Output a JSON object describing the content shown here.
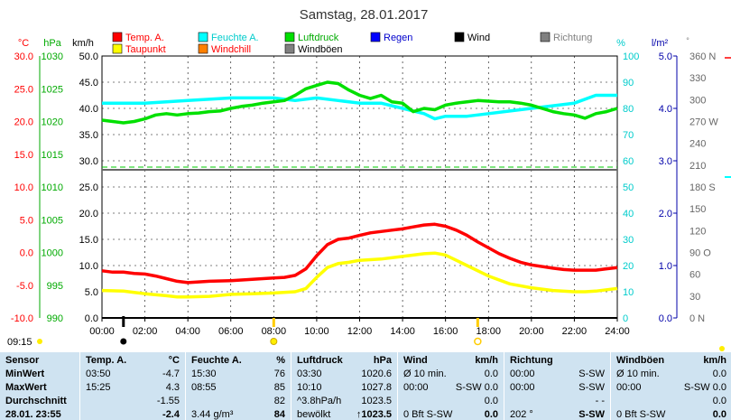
{
  "header": {
    "title": "Samstag, 28.01.2017"
  },
  "legend": [
    {
      "label": "Temp. A.",
      "color": "#ff0000",
      "text_color": "#ff0000"
    },
    {
      "label": "Taupunkt",
      "color": "#ffff00",
      "text_color": "#ff0000"
    },
    {
      "label": "Feuchte A.",
      "color": "#00ffff",
      "text_color": "#00cccc"
    },
    {
      "label": "Windchill",
      "color": "#ff8000",
      "text_color": "#ff0000"
    },
    {
      "label": "Luftdruck",
      "color": "#00e000",
      "text_color": "#00aa00"
    },
    {
      "label": "Windböen",
      "color": "#808080",
      "text_color": "#000000"
    },
    {
      "label": "Regen",
      "color": "#0000ff",
      "text_color": "#0000cc"
    },
    {
      "label": "Wind",
      "color": "#000000",
      "text_color": "#000000"
    },
    {
      "label": "Richtung",
      "color": "#808080",
      "text_color": "#808080"
    }
  ],
  "chart_data": {
    "type": "line",
    "x_ticks": [
      "00:00",
      "02:00",
      "04:00",
      "06:00",
      "08:00",
      "10:00",
      "12:00",
      "14:00",
      "16:00",
      "18:00",
      "20:00",
      "22:00",
      "24:00"
    ],
    "axes": {
      "temp_c": {
        "unit": "°C",
        "color": "#ff0000",
        "ticks": [
          "30.0",
          "25.0",
          "20.0",
          "15.0",
          "10.0",
          "5.0",
          "0.0",
          "-5.0",
          "-10.0"
        ]
      },
      "pressure_hpa": {
        "unit": "hPa",
        "color": "#00aa00",
        "ticks": [
          "1030",
          "1025",
          "1020",
          "1015",
          "1010",
          "1005",
          "1000",
          "995",
          "990"
        ]
      },
      "wind_kmh": {
        "unit": "km/h",
        "color": "#000000",
        "ticks": [
          "50.0",
          "45.0",
          "40.0",
          "35.0",
          "30.0",
          "25.0",
          "20.0",
          "15.0",
          "10.0",
          "5.0",
          "0.0"
        ]
      },
      "humidity_pct": {
        "unit": "%",
        "color": "#00cccc",
        "ticks": [
          "100",
          "90",
          "80",
          "70",
          "60",
          "50",
          "40",
          "30",
          "20",
          "10",
          "0"
        ]
      },
      "rain_lm2": {
        "unit": "l/m²",
        "color": "#0000aa",
        "ticks": [
          "5.0",
          "4.0",
          "3.0",
          "2.0",
          "1.0",
          "0.0"
        ]
      },
      "direction": {
        "unit": "°",
        "color": "#808080",
        "ticks": [
          "360 N",
          "330",
          "300",
          "270 W",
          "240",
          "210",
          "180 S",
          "150",
          "120",
          "90 O",
          "60",
          "30",
          "0 N"
        ]
      }
    },
    "series": [
      {
        "name": "Temp. A.",
        "axis": "temp_c",
        "color": "#ff0000",
        "x": [
          0,
          0.5,
          1,
          1.5,
          2,
          2.5,
          3,
          3.5,
          4,
          4.5,
          5,
          6,
          7,
          8,
          8.5,
          9,
          9.5,
          10,
          10.5,
          11,
          11.5,
          12,
          12.5,
          13,
          13.5,
          14,
          14.5,
          15,
          15.5,
          16,
          16.5,
          17,
          17.5,
          18,
          18.5,
          19,
          19.5,
          20,
          21,
          21.5,
          22,
          22.5,
          23,
          23.5,
          24
        ],
        "y": [
          -2.8,
          -3.0,
          -3.0,
          -3.2,
          -3.3,
          -3.6,
          -4.0,
          -4.4,
          -4.6,
          -4.5,
          -4.4,
          -4.3,
          -4.1,
          -3.9,
          -3.8,
          -3.5,
          -2.5,
          -0.5,
          1.2,
          2.0,
          2.2,
          2.6,
          3.0,
          3.2,
          3.4,
          3.6,
          3.9,
          4.2,
          4.3,
          4.0,
          3.4,
          2.6,
          1.6,
          0.7,
          -0.2,
          -0.9,
          -1.5,
          -1.9,
          -2.4,
          -2.6,
          -2.7,
          -2.7,
          -2.7,
          -2.5,
          -2.3
        ]
      },
      {
        "name": "Taupunkt",
        "axis": "temp_c",
        "color": "#ffff00",
        "x": [
          0,
          1,
          1.5,
          2,
          3,
          3.5,
          4,
          5,
          6,
          7,
          8,
          9,
          9.5,
          10,
          10.5,
          11,
          11.5,
          12,
          13,
          14,
          15,
          15.5,
          16,
          17,
          18,
          19,
          20,
          21,
          22,
          22.5,
          23,
          23.5,
          24
        ],
        "y": [
          -5.8,
          -5.9,
          -6.1,
          -6.3,
          -6.6,
          -6.8,
          -6.8,
          -6.7,
          -6.4,
          -6.3,
          -6.2,
          -6.0,
          -5.5,
          -3.8,
          -2.3,
          -1.7,
          -1.5,
          -1.2,
          -1.0,
          -0.6,
          -0.2,
          -0.1,
          -0.4,
          -2.0,
          -3.6,
          -4.8,
          -5.4,
          -5.8,
          -6.0,
          -6.0,
          -5.9,
          -5.7,
          -5.5
        ]
      },
      {
        "name": "Feuchte A.",
        "axis": "humidity_pct",
        "color": "#00ffff",
        "x": [
          0,
          2,
          4,
          6,
          8,
          9,
          10,
          11,
          12,
          13,
          14,
          15,
          15.5,
          16,
          17,
          18,
          19,
          20,
          21,
          22,
          23,
          24
        ],
        "y": [
          82,
          82,
          83,
          84,
          84,
          83,
          84,
          83,
          82,
          82,
          80,
          78,
          76,
          77,
          77,
          78,
          79,
          80,
          81,
          82,
          85,
          85
        ]
      },
      {
        "name": "Luftdruck",
        "axis": "pressure_hpa",
        "color": "#00e000",
        "x": [
          0,
          0.5,
          1,
          1.5,
          2,
          2.5,
          3,
          3.5,
          4,
          4.5,
          5,
          5.5,
          6,
          6.5,
          7,
          7.5,
          8,
          8.5,
          9,
          9.5,
          10,
          10.5,
          11,
          11.5,
          12,
          12.5,
          13,
          13.5,
          14,
          14.5,
          15,
          15.5,
          16,
          16.5,
          17,
          17.5,
          18,
          18.5,
          19,
          19.5,
          20,
          20.5,
          21,
          21.5,
          22,
          22.5,
          23,
          23.5,
          24
        ],
        "y": [
          1020.2,
          1020.0,
          1019.8,
          1020.0,
          1020.4,
          1021.0,
          1021.2,
          1021.0,
          1021.2,
          1021.3,
          1021.5,
          1021.6,
          1022.0,
          1022.3,
          1022.5,
          1022.8,
          1023.0,
          1023.2,
          1024.0,
          1025.0,
          1025.5,
          1026.0,
          1025.8,
          1024.8,
          1024.0,
          1023.5,
          1024.0,
          1023.0,
          1022.8,
          1021.5,
          1022.0,
          1021.8,
          1022.5,
          1022.8,
          1023.0,
          1023.2,
          1023.1,
          1023.0,
          1023.0,
          1022.8,
          1022.5,
          1022.0,
          1021.5,
          1021.2,
          1021.0,
          1020.5,
          1021.2,
          1021.5,
          1022.0
        ]
      },
      {
        "name": "Wind",
        "axis": "wind_kmh",
        "color": "#000000",
        "x": [
          0,
          24
        ],
        "y": [
          0.0,
          0.0
        ]
      }
    ],
    "markers": {
      "sunrise": "08:00",
      "sunset": "17:30",
      "moon": "01:00"
    },
    "current_time": "09:15"
  },
  "stats": {
    "row_labels": {
      "header": "Sensor",
      "min": "MinWert",
      "max": "MaxWert",
      "avg": "Durchschnitt",
      "current": "28.01. 23:55"
    },
    "columns": [
      {
        "name": "Temp. A.",
        "unit": "°C",
        "min_time": "03:50",
        "min": "-4.7",
        "max_time": "15:25",
        "max": "4.3",
        "avg_label": "",
        "avg": "-1.55",
        "cur_label": "",
        "cur": "-2.4"
      },
      {
        "name": "Feuchte A.",
        "unit": "%",
        "min_time": "15:30",
        "min": "76",
        "max_time": "08:55",
        "max": "85",
        "avg_label": "",
        "avg": "82",
        "cur_label": "3.44 g/m³",
        "cur": "84"
      },
      {
        "name": "Luftdruck",
        "unit": "hPa",
        "min_time": "03:30",
        "min": "1020.6",
        "max_time": "10:10",
        "max": "1027.8",
        "avg_label": "^3.8hPa/h",
        "avg": "1023.5",
        "cur_label": "bewölkt",
        "cur": "↑1023.5"
      },
      {
        "name": "Wind",
        "unit": "km/h",
        "min_time": "Ø 10 min.",
        "min": "0.0",
        "max_time": "00:00",
        "max": "S-SW 0.0",
        "avg_label": "",
        "avg": "0.0",
        "cur_label": "0 Bft S-SW",
        "cur": "0.0"
      },
      {
        "name": "Richtung",
        "unit": "",
        "min_time": "00:00",
        "min": "S-SW",
        "max_time": "00:00",
        "max": "S-SW",
        "avg_label": "",
        "avg": "- -",
        "cur_label": "202 °",
        "cur": "S-SW"
      },
      {
        "name": "Windböen",
        "unit": "km/h",
        "min_time": "Ø 10 min.",
        "min": "0.0",
        "max_time": "00:00",
        "max": "S-SW 0.0",
        "avg_label": "",
        "avg": "0.0",
        "cur_label": "0 Bft S-SW",
        "cur": "0.0"
      }
    ]
  }
}
